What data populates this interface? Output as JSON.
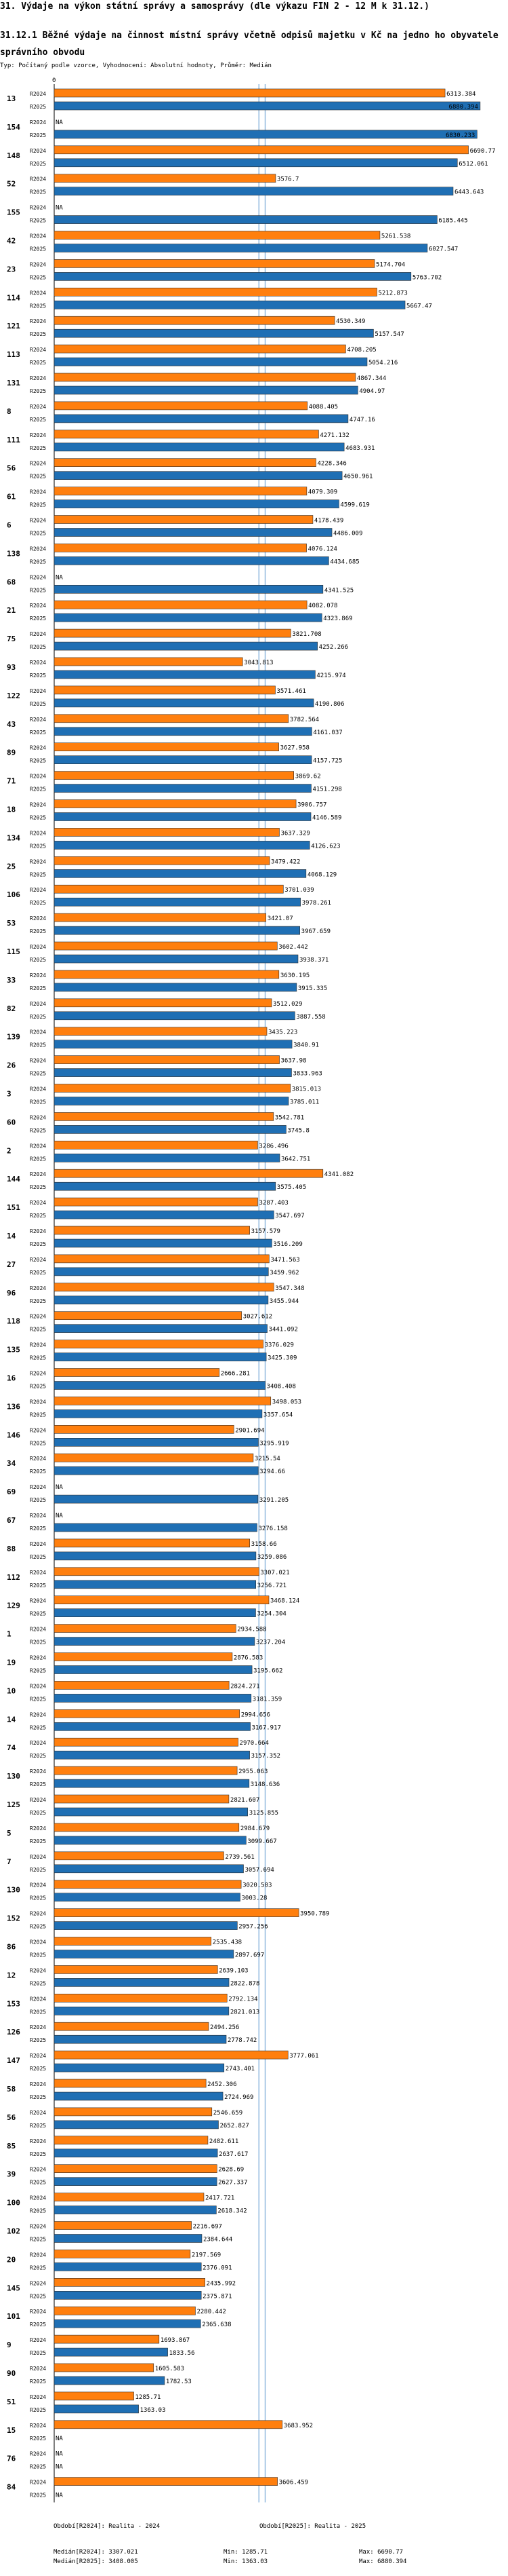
{
  "page": {
    "title": "31. Výdaje na výkon státní správy a samosprávy (dle výkazu FIN 2 - 12 M k 31.12.)",
    "subtitle": "31.12.1 Běžné výdaje na činnost místní správy včetně odpisů majetku v Kč na jedno ho obyvatele správního obvodu",
    "type_line": "Typ: Počítaný podle vzorce, Vyhodnocení: Absolutní hodnoty, Průměr: Medián",
    "axis_zero": "0"
  },
  "chart_data": {
    "type": "bar",
    "orientation": "horizontal",
    "title": "31.12.1 Běžné výdaje na činnost místní správy včetně odpisů majetku v Kč na jedno ho obyvatele správního obvodu",
    "series": [
      {
        "name": "R2024",
        "color": "#ff7f0e"
      },
      {
        "name": "R2025",
        "color": "#1f6fb4"
      }
    ],
    "xlim": [
      0,
      7330
    ],
    "reference_lines": {
      "median_2024": 3307.021,
      "median_2025": 3408.005,
      "color": "#8fb8de"
    },
    "missing_label": "NA",
    "rows": [
      {
        "id": "13",
        "r2024": "6313.384",
        "r2025": "6880.394"
      },
      {
        "id": "154",
        "r2024": "NA",
        "r2025": "6830.233"
      },
      {
        "id": "148",
        "r2024": "6690.77",
        "r2025": "6512.061"
      },
      {
        "id": "52",
        "r2024": "3576.7",
        "r2025": "6443.643"
      },
      {
        "id": "155",
        "r2024": "NA",
        "r2025": "6185.445"
      },
      {
        "id": "42",
        "r2024": "5261.538",
        "r2025": "6027.547"
      },
      {
        "id": "23",
        "r2024": "5174.704",
        "r2025": "5763.702"
      },
      {
        "id": "114",
        "r2024": "5212.873",
        "r2025": "5667.47"
      },
      {
        "id": "121",
        "r2024": "4530.349",
        "r2025": "5157.547"
      },
      {
        "id": "113",
        "r2024": "4708.205",
        "r2025": "5054.216"
      },
      {
        "id": "131",
        "r2024": "4867.344",
        "r2025": "4904.97"
      },
      {
        "id": "8",
        "r2024": "4088.405",
        "r2025": "4747.16"
      },
      {
        "id": "111",
        "r2024": "4271.132",
        "r2025": "4683.931"
      },
      {
        "id": "56",
        "r2024": "4228.346",
        "r2025": "4650.961"
      },
      {
        "id": "61",
        "r2024": "4079.309",
        "r2025": "4599.619"
      },
      {
        "id": "6",
        "r2024": "4178.439",
        "r2025": "4486.009"
      },
      {
        "id": "138",
        "r2024": "4076.124",
        "r2025": "4434.685"
      },
      {
        "id": "68",
        "r2024": "NA",
        "r2025": "4341.525"
      },
      {
        "id": "21",
        "r2024": "4082.078",
        "r2025": "4323.869"
      },
      {
        "id": "75",
        "r2024": "3821.708",
        "r2025": "4252.266"
      },
      {
        "id": "93",
        "r2024": "3043.813",
        "r2025": "4215.974"
      },
      {
        "id": "122",
        "r2024": "3571.461",
        "r2025": "4190.806"
      },
      {
        "id": "43",
        "r2024": "3782.564",
        "r2025": "4161.037"
      },
      {
        "id": "89",
        "r2024": "3627.958",
        "r2025": "4157.725"
      },
      {
        "id": "71",
        "r2024": "3869.62",
        "r2025": "4151.298"
      },
      {
        "id": "18",
        "r2024": "3906.757",
        "r2025": "4146.589"
      },
      {
        "id": "134",
        "r2024": "3637.329",
        "r2025": "4126.623"
      },
      {
        "id": "25",
        "r2024": "3479.422",
        "r2025": "4068.129"
      },
      {
        "id": "106",
        "r2024": "3701.039",
        "r2025": "3978.261"
      },
      {
        "id": "53",
        "r2024": "3421.07",
        "r2025": "3967.659"
      },
      {
        "id": "115",
        "r2024": "3602.442",
        "r2025": "3938.371"
      },
      {
        "id": "33",
        "r2024": "3630.195",
        "r2025": "3915.335"
      },
      {
        "id": "82",
        "r2024": "3512.029",
        "r2025": "3887.558"
      },
      {
        "id": "139",
        "r2024": "3435.223",
        "r2025": "3840.91"
      },
      {
        "id": "26",
        "r2024": "3637.98",
        "r2025": "3833.963"
      },
      {
        "id": "3",
        "r2024": "3815.013",
        "r2025": "3785.011"
      },
      {
        "id": "60",
        "r2024": "3542.781",
        "r2025": "3745.8"
      },
      {
        "id": "2",
        "r2024": "3286.496",
        "r2025": "3642.751"
      },
      {
        "id": "144",
        "r2024": "4341.082",
        "r2025": "3575.405"
      },
      {
        "id": "151",
        "r2024": "3287.403",
        "r2025": "3547.697"
      },
      {
        "id": "14",
        "r2024": "3157.579",
        "r2025": "3516.209"
      },
      {
        "id": "27",
        "r2024": "3471.563",
        "r2025": "3459.962"
      },
      {
        "id": "96",
        "r2024": "3547.348",
        "r2025": "3455.944"
      },
      {
        "id": "118",
        "r2024": "3027.612",
        "r2025": "3441.092"
      },
      {
        "id": "135",
        "r2024": "3376.029",
        "r2025": "3425.309"
      },
      {
        "id": "16",
        "r2024": "2666.281",
        "r2025": "3408.408"
      },
      {
        "id": "136",
        "r2024": "3498.053",
        "r2025": "3357.654"
      },
      {
        "id": "146",
        "r2024": "2901.694",
        "r2025": "3295.919"
      },
      {
        "id": "34",
        "r2024": "3215.54",
        "r2025": "3294.66"
      },
      {
        "id": "69",
        "r2024": "NA",
        "r2025": "3291.205"
      },
      {
        "id": "67",
        "r2024": "NA",
        "r2025": "3276.158"
      },
      {
        "id": "88",
        "r2024": "3158.66",
        "r2025": "3259.086"
      },
      {
        "id": "112",
        "r2024": "3307.021",
        "r2025": "3256.721"
      },
      {
        "id": "129",
        "r2024": "3468.124",
        "r2025": "3254.304"
      },
      {
        "id": "1",
        "r2024": "2934.588",
        "r2025": "3237.204"
      },
      {
        "id": "19",
        "r2024": "2876.583",
        "r2025": "3195.662"
      },
      {
        "id": "10",
        "r2024": "2824.271",
        "r2025": "3181.359"
      },
      {
        "id": "14",
        "r2024": "2994.656",
        "r2025": "3167.917"
      },
      {
        "id": "74",
        "r2024": "2970.664",
        "r2025": "3157.352"
      },
      {
        "id": "130",
        "r2024": "2955.063",
        "r2025": "3148.636"
      },
      {
        "id": "125",
        "r2024": "2821.607",
        "r2025": "3125.855"
      },
      {
        "id": "5",
        "r2024": "2984.679",
        "r2025": "3099.667"
      },
      {
        "id": "7",
        "r2024": "2739.561",
        "r2025": "3057.694"
      },
      {
        "id": "130",
        "r2024": "3020.503",
        "r2025": "3003.28"
      },
      {
        "id": "152",
        "r2024": "3950.789",
        "r2025": "2957.256"
      },
      {
        "id": "86",
        "r2024": "2535.438",
        "r2025": "2897.697"
      },
      {
        "id": "12",
        "r2024": "2639.103",
        "r2025": "2822.878"
      },
      {
        "id": "153",
        "r2024": "2792.134",
        "r2025": "2821.013"
      },
      {
        "id": "126",
        "r2024": "2494.256",
        "r2025": "2778.742"
      },
      {
        "id": "147",
        "r2024": "3777.061",
        "r2025": "2743.401"
      },
      {
        "id": "58",
        "r2024": "2452.306",
        "r2025": "2724.969"
      },
      {
        "id": "56",
        "r2024": "2546.659",
        "r2025": "2652.827"
      },
      {
        "id": "85",
        "r2024": "2482.611",
        "r2025": "2637.617"
      },
      {
        "id": "39",
        "r2024": "2628.69",
        "r2025": "2627.337"
      },
      {
        "id": "100",
        "r2024": "2417.721",
        "r2025": "2618.342"
      },
      {
        "id": "102",
        "r2024": "2216.697",
        "r2025": "2384.644"
      },
      {
        "id": "20",
        "r2024": "2197.569",
        "r2025": "2376.091"
      },
      {
        "id": "145",
        "r2024": "2435.992",
        "r2025": "2375.871"
      },
      {
        "id": "101",
        "r2024": "2280.442",
        "r2025": "2365.638"
      },
      {
        "id": "9",
        "r2024": "1693.867",
        "r2025": "1833.56"
      },
      {
        "id": "90",
        "r2024": "1605.583",
        "r2025": "1782.53"
      },
      {
        "id": "51",
        "r2024": "1285.71",
        "r2025": "1363.03"
      },
      {
        "id": "15",
        "r2024": "3683.952",
        "r2025": "NA"
      },
      {
        "id": "76",
        "r2024": "NA",
        "r2025": "NA"
      },
      {
        "id": "84",
        "r2024": "3606.459",
        "r2025": "NA"
      }
    ]
  },
  "footer": {
    "col1": [
      {
        "label": "Období[R2024]:",
        "value": "Realita - 2024"
      },
      {
        "label": "Medián[R2024]:",
        "value": "3307.021"
      },
      {
        "label": "Medián[R2025]:",
        "value": "3408.005"
      }
    ],
    "col2": [
      {
        "label": "Min:",
        "value": "1285.71"
      },
      {
        "label": "Min:",
        "value": "1363.03"
      }
    ],
    "col3": [
      {
        "label": "Období[R2025]:",
        "value": "Realita - 2025"
      },
      {
        "label": "Max:",
        "value": "6690.77"
      },
      {
        "label": "Max:",
        "value": "6880.394"
      }
    ]
  }
}
